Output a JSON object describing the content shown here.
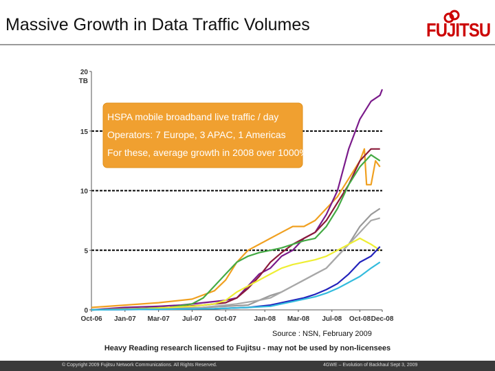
{
  "slide": {
    "title": "Massive Growth in Data Traffic Volumes",
    "logo": "FUJITSU",
    "source": "Source : NSN, February 2009",
    "license": "Heavy Reading research licensed to Fujitsu - may not be used by non-licensees",
    "footer_left": "© Copyright 2009 Fujitsu Network Communications. All Rights Reserved.",
    "footer_right": "4GWE – Evolution of Backhaul Sept 3, 2009"
  },
  "colors": {
    "logo": "#cc0000",
    "callout_fill": "#f0a030",
    "footer_bar": "#3a3a3a"
  },
  "chart_data": {
    "type": "line",
    "unit_label": "TB",
    "ylim": [
      0,
      20
    ],
    "yticks": [
      0,
      5,
      10,
      15,
      20
    ],
    "xlim": [
      0,
      26
    ],
    "xticks": [
      {
        "x": 0,
        "label": "Oct-06"
      },
      {
        "x": 3,
        "label": "Jan-07"
      },
      {
        "x": 6,
        "label": "Mar-07"
      },
      {
        "x": 9,
        "label": "Jul-07"
      },
      {
        "x": 12,
        "label": "Oct-07"
      },
      {
        "x": 15.5,
        "label": "Jan-08"
      },
      {
        "x": 18.5,
        "label": "Mar-08"
      },
      {
        "x": 21.5,
        "label": "Jul-08"
      },
      {
        "x": 24,
        "label": "Oct-08"
      },
      {
        "x": 26,
        "label": "Dec-08"
      }
    ],
    "gridlines": [
      5,
      10,
      15
    ],
    "annotation": [
      "HSPA mobile broadband live traffic / day",
      "Operators: 7 Europe, 3 APAC, 1 Americas",
      "For these, average growth in 2008 over 1000%"
    ],
    "series": [
      {
        "color": "#f0a020",
        "points": [
          [
            0,
            0.2
          ],
          [
            3,
            0.4
          ],
          [
            6,
            0.6
          ],
          [
            9,
            0.9
          ],
          [
            11,
            1.6
          ],
          [
            12,
            2.5
          ],
          [
            13,
            4.0
          ],
          [
            14,
            5.0
          ],
          [
            15,
            5.5
          ],
          [
            16,
            6.0
          ],
          [
            17,
            6.5
          ],
          [
            18,
            7.0
          ],
          [
            19,
            7.0
          ],
          [
            20,
            7.5
          ],
          [
            21,
            8.5
          ],
          [
            22,
            9.5
          ],
          [
            23,
            11.0
          ],
          [
            24,
            12.5
          ],
          [
            24.4,
            13.5
          ],
          [
            24.6,
            10.5
          ],
          [
            25,
            10.5
          ],
          [
            25.4,
            12.5
          ],
          [
            25.8,
            12.0
          ]
        ]
      },
      {
        "color": "#7a1a8a",
        "points": [
          [
            0,
            0
          ],
          [
            3,
            0.2
          ],
          [
            6,
            0.3
          ],
          [
            8,
            0.4
          ],
          [
            10,
            0.6
          ],
          [
            12,
            0.8
          ],
          [
            13,
            1.0
          ],
          [
            14,
            2.0
          ],
          [
            15,
            3.0
          ],
          [
            16,
            3.5
          ],
          [
            17,
            4.5
          ],
          [
            18,
            5.0
          ],
          [
            19,
            6.0
          ],
          [
            20,
            6.5
          ],
          [
            21,
            8.0
          ],
          [
            22,
            10.0
          ],
          [
            23,
            13.5
          ],
          [
            24,
            16.0
          ],
          [
            25,
            17.5
          ],
          [
            25.8,
            18.0
          ],
          [
            26,
            18.5
          ]
        ]
      },
      {
        "color": "#8a1a3a",
        "points": [
          [
            0,
            0
          ],
          [
            4,
            0.1
          ],
          [
            7,
            0.2
          ],
          [
            10,
            0.4
          ],
          [
            12,
            0.6
          ],
          [
            13,
            1.0
          ],
          [
            14,
            1.8
          ],
          [
            15,
            2.8
          ],
          [
            16,
            4.0
          ],
          [
            17,
            4.8
          ],
          [
            18,
            5.5
          ],
          [
            19,
            6.0
          ],
          [
            20,
            6.5
          ],
          [
            21,
            7.5
          ],
          [
            22,
            9.0
          ],
          [
            23,
            10.5
          ],
          [
            24,
            12.5
          ],
          [
            25,
            13.5
          ],
          [
            25.8,
            13.5
          ]
        ]
      },
      {
        "color": "#44aa44",
        "points": [
          [
            0,
            0
          ],
          [
            4,
            0.1
          ],
          [
            7,
            0.2
          ],
          [
            9,
            0.5
          ],
          [
            10,
            1.0
          ],
          [
            11,
            2.0
          ],
          [
            12,
            3.0
          ],
          [
            13,
            4.0
          ],
          [
            14,
            4.5
          ],
          [
            15,
            4.8
          ],
          [
            16,
            5.0
          ],
          [
            17,
            5.2
          ],
          [
            18,
            5.5
          ],
          [
            19,
            5.8
          ],
          [
            20,
            6.0
          ],
          [
            21,
            7.0
          ],
          [
            22,
            8.5
          ],
          [
            23,
            10.5
          ],
          [
            24,
            12.0
          ],
          [
            25,
            13.0
          ],
          [
            25.8,
            12.5
          ]
        ]
      },
      {
        "color": "#999999",
        "points": [
          [
            0,
            0
          ],
          [
            5,
            0.1
          ],
          [
            10,
            0.2
          ],
          [
            12,
            0.3
          ],
          [
            14,
            0.4
          ],
          [
            15,
            0.8
          ],
          [
            16,
            1.2
          ],
          [
            17,
            1.5
          ],
          [
            18,
            2.0
          ],
          [
            19,
            2.5
          ],
          [
            20,
            3.0
          ],
          [
            21,
            3.5
          ],
          [
            22,
            4.5
          ],
          [
            23,
            5.5
          ],
          [
            24,
            7.0
          ],
          [
            25,
            8.0
          ],
          [
            25.8,
            8.5
          ]
        ]
      },
      {
        "color": "#a8a8a8",
        "points": [
          [
            0,
            0
          ],
          [
            5,
            0.1
          ],
          [
            10,
            0.2
          ],
          [
            13,
            0.5
          ],
          [
            15,
            0.8
          ],
          [
            16,
            1.0
          ],
          [
            17,
            1.5
          ],
          [
            18,
            2.0
          ],
          [
            19,
            2.5
          ],
          [
            20,
            3.0
          ],
          [
            21,
            3.5
          ],
          [
            22,
            4.5
          ],
          [
            23,
            5.5
          ],
          [
            24,
            6.5
          ],
          [
            25,
            7.5
          ],
          [
            25.8,
            7.7
          ]
        ]
      },
      {
        "color": "#eeee33",
        "points": [
          [
            0,
            0
          ],
          [
            5,
            0.1
          ],
          [
            9,
            0.3
          ],
          [
            11,
            0.5
          ],
          [
            12,
            0.8
          ],
          [
            13,
            1.5
          ],
          [
            14,
            2.0
          ],
          [
            15,
            2.5
          ],
          [
            16,
            3.0
          ],
          [
            17,
            3.5
          ],
          [
            18,
            3.8
          ],
          [
            19,
            4.0
          ],
          [
            20,
            4.2
          ],
          [
            21,
            4.5
          ],
          [
            22,
            5.0
          ],
          [
            23,
            5.5
          ],
          [
            24,
            6.0
          ],
          [
            25,
            5.5
          ],
          [
            25.8,
            5.0
          ]
        ]
      },
      {
        "color": "#2222bb",
        "points": [
          [
            0,
            0
          ],
          [
            6,
            0.05
          ],
          [
            11,
            0.1
          ],
          [
            14,
            0.2
          ],
          [
            16,
            0.4
          ],
          [
            17,
            0.6
          ],
          [
            18,
            0.8
          ],
          [
            19,
            1.0
          ],
          [
            20,
            1.3
          ],
          [
            21,
            1.7
          ],
          [
            22,
            2.2
          ],
          [
            23,
            3.0
          ],
          [
            24,
            4.0
          ],
          [
            25,
            4.5
          ],
          [
            25.8,
            5.3
          ]
        ]
      },
      {
        "color": "#33bbdd",
        "points": [
          [
            0,
            0
          ],
          [
            6,
            0.05
          ],
          [
            11,
            0.1
          ],
          [
            14,
            0.2
          ],
          [
            16,
            0.3
          ],
          [
            17,
            0.5
          ],
          [
            18,
            0.7
          ],
          [
            19,
            0.9
          ],
          [
            20,
            1.1
          ],
          [
            21,
            1.4
          ],
          [
            22,
            1.8
          ],
          [
            23,
            2.3
          ],
          [
            24,
            2.8
          ],
          [
            25,
            3.5
          ],
          [
            25.8,
            4.0
          ]
        ]
      }
    ]
  }
}
